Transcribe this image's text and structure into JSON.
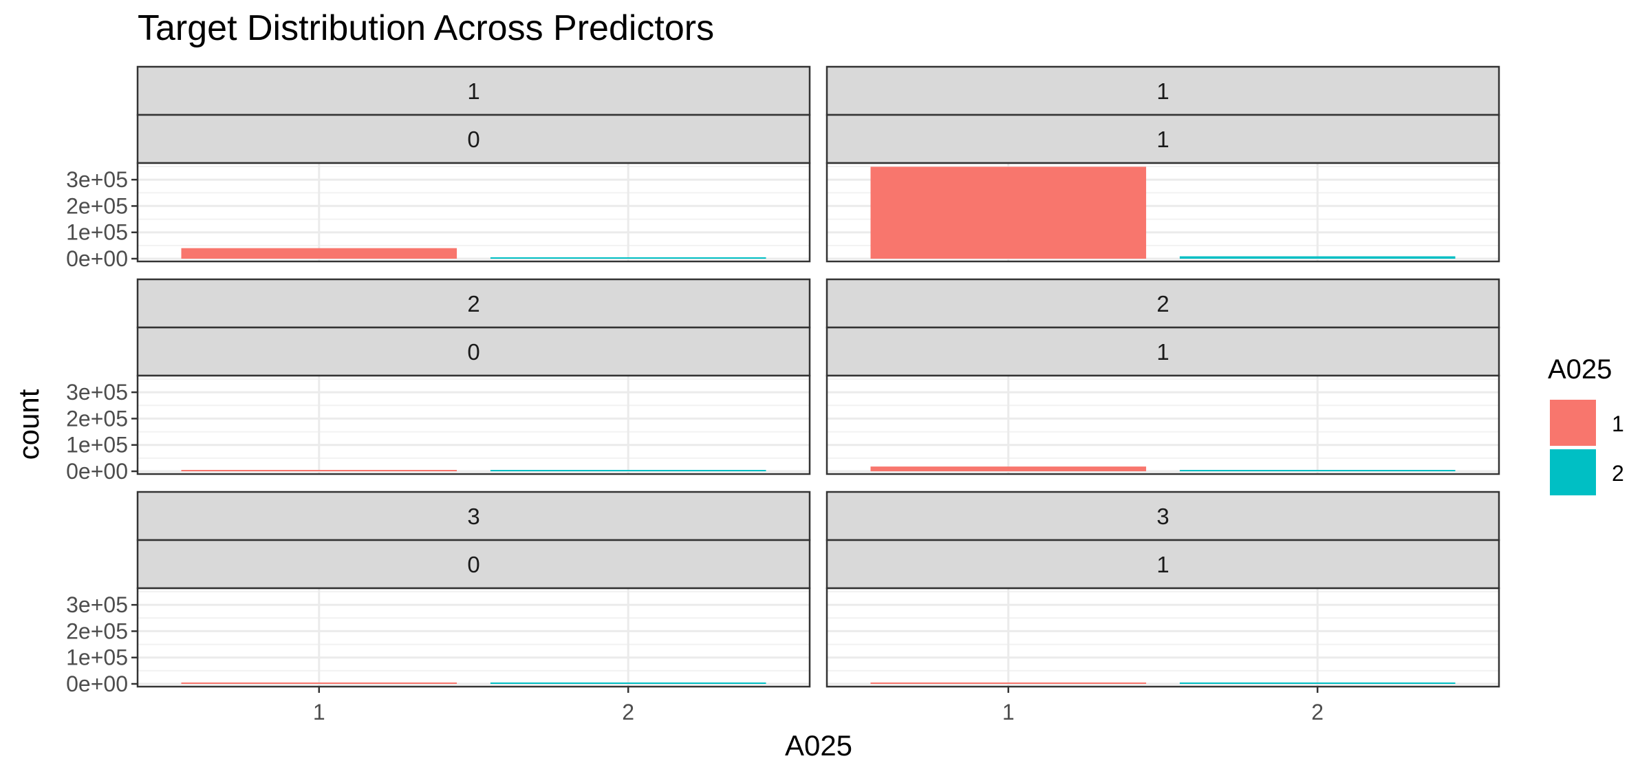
{
  "chart_data": {
    "type": "bar",
    "title": "Target Distribution Across Predictors",
    "xlabel": "A025",
    "ylabel": "count",
    "categories": [
      "1",
      "2"
    ],
    "y_ticks": [
      "0e+00",
      "1e+05",
      "2e+05",
      "3e+05"
    ],
    "y_tick_values": [
      0,
      100000,
      200000,
      300000
    ],
    "ylim": [
      0,
      350000
    ],
    "grid": true,
    "legend": {
      "title": "A025",
      "position": "right",
      "entries": [
        {
          "label": "1",
          "color": "#F8766D"
        },
        {
          "label": "2",
          "color": "#00BFC4"
        }
      ]
    },
    "panels": [
      {
        "strip_top": "1",
        "strip_bottom": "0",
        "values": [
          40000,
          2500
        ]
      },
      {
        "strip_top": "1",
        "strip_bottom": "1",
        "values": [
          349000,
          9000
        ]
      },
      {
        "strip_top": "2",
        "strip_bottom": "0",
        "values": [
          2000,
          500
        ]
      },
      {
        "strip_top": "2",
        "strip_bottom": "1",
        "values": [
          18000,
          2000
        ]
      },
      {
        "strip_top": "3",
        "strip_bottom": "0",
        "values": [
          500,
          200
        ]
      },
      {
        "strip_top": "3",
        "strip_bottom": "1",
        "values": [
          3000,
          500
        ]
      }
    ]
  }
}
